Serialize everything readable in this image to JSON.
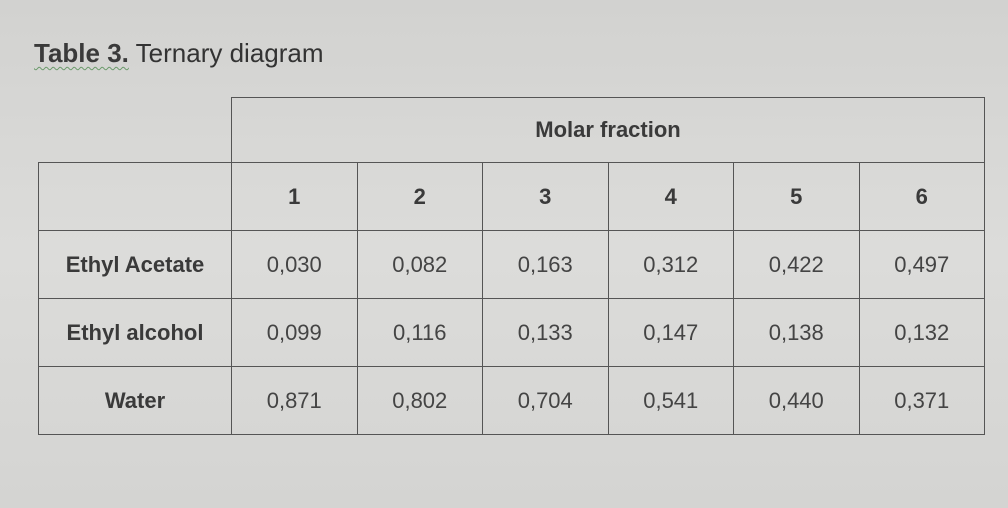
{
  "title": {
    "label": "Table 3.",
    "text": "Ternary diagram"
  },
  "table": {
    "group_header": "Molar fraction",
    "columns": [
      "1",
      "2",
      "3",
      "4",
      "5",
      "6"
    ],
    "rows": [
      {
        "name": "Ethyl Acetate",
        "values": [
          "0,030",
          "0,082",
          "0,163",
          "0,312",
          "0,422",
          "0,497"
        ]
      },
      {
        "name": "Ethyl alcohol",
        "values": [
          "0,099",
          "0,116",
          "0,133",
          "0,147",
          "0,138",
          "0,132"
        ]
      },
      {
        "name": "Water",
        "values": [
          "0,871",
          "0,802",
          "0,704",
          "0,541",
          "0,440",
          "0,371"
        ]
      }
    ]
  }
}
